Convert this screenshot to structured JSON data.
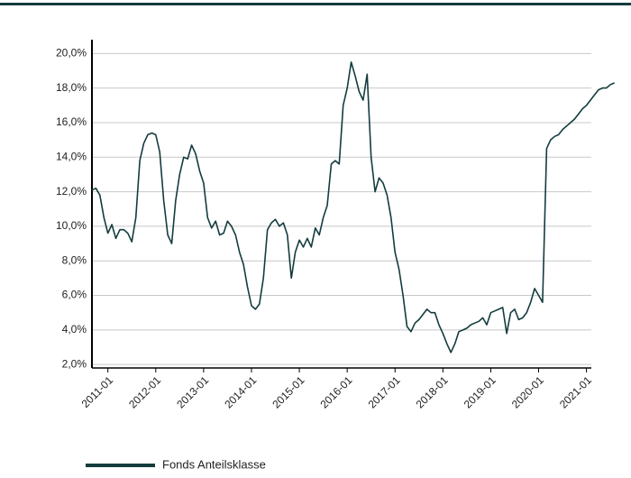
{
  "chart_data": {
    "type": "line",
    "x": [
      "2010-09",
      "2010-10",
      "2010-11",
      "2010-12",
      "2011-01",
      "2011-02",
      "2011-03",
      "2011-04",
      "2011-05",
      "2011-06",
      "2011-07",
      "2011-08",
      "2011-09",
      "2011-10",
      "2011-11",
      "2011-12",
      "2012-01",
      "2012-02",
      "2012-03",
      "2012-04",
      "2012-05",
      "2012-06",
      "2012-07",
      "2012-08",
      "2012-09",
      "2012-10",
      "2012-11",
      "2012-12",
      "2013-01",
      "2013-02",
      "2013-03",
      "2013-04",
      "2013-05",
      "2013-06",
      "2013-07",
      "2013-08",
      "2013-09",
      "2013-10",
      "2013-11",
      "2013-12",
      "2014-01",
      "2014-02",
      "2014-03",
      "2014-04",
      "2014-05",
      "2014-06",
      "2014-07",
      "2014-08",
      "2014-09",
      "2014-10",
      "2014-11",
      "2014-12",
      "2015-01",
      "2015-02",
      "2015-03",
      "2015-04",
      "2015-05",
      "2015-06",
      "2015-07",
      "2015-08",
      "2015-09",
      "2015-10",
      "2015-11",
      "2015-12",
      "2016-01",
      "2016-02",
      "2016-03",
      "2016-04",
      "2016-05",
      "2016-06",
      "2016-07",
      "2016-08",
      "2016-09",
      "2016-10",
      "2016-11",
      "2016-12",
      "2017-01",
      "2017-02",
      "2017-03",
      "2017-04",
      "2017-05",
      "2017-06",
      "2017-07",
      "2017-08",
      "2017-09",
      "2017-10",
      "2017-11",
      "2017-12",
      "2018-01",
      "2018-02",
      "2018-03",
      "2018-04",
      "2018-05",
      "2018-06",
      "2018-07",
      "2018-08",
      "2018-09",
      "2018-10",
      "2018-11",
      "2018-12",
      "2019-01",
      "2019-02",
      "2019-03",
      "2019-04",
      "2019-05",
      "2019-06",
      "2019-07",
      "2019-08",
      "2019-09",
      "2019-10",
      "2019-11",
      "2019-12",
      "2020-01",
      "2020-02",
      "2020-03",
      "2020-04",
      "2020-05",
      "2020-06",
      "2020-07",
      "2020-08",
      "2020-09",
      "2020-10",
      "2020-11",
      "2020-12",
      "2021-01",
      "2021-02",
      "2021-03",
      "2021-04",
      "2021-05",
      "2021-06",
      "2021-07",
      "2021-08"
    ],
    "series": [
      {
        "name": "Fonds Anteilsklasse",
        "color": "#143c3e",
        "values": [
          12.1,
          12.2,
          11.8,
          10.5,
          9.6,
          10.1,
          9.3,
          9.8,
          9.8,
          9.6,
          9.1,
          10.5,
          13.8,
          14.8,
          15.3,
          15.4,
          15.3,
          14.3,
          11.5,
          9.5,
          9.0,
          11.5,
          13.0,
          14.0,
          13.9,
          14.7,
          14.2,
          13.2,
          12.5,
          10.5,
          9.9,
          10.3,
          9.5,
          9.6,
          10.3,
          10.0,
          9.5,
          8.5,
          7.8,
          6.5,
          5.4,
          5.2,
          5.5,
          7.0,
          9.8,
          10.2,
          10.4,
          10.0,
          10.2,
          9.5,
          7.0,
          8.5,
          9.2,
          8.8,
          9.3,
          8.8,
          9.9,
          9.5,
          10.5,
          11.2,
          13.6,
          13.8,
          13.6,
          17.0,
          18.0,
          19.5,
          18.7,
          17.8,
          17.3,
          18.8,
          14.0,
          12.0,
          12.8,
          12.5,
          11.8,
          10.5,
          8.5,
          7.5,
          6.0,
          4.2,
          3.9,
          4.4,
          4.6,
          4.9,
          5.2,
          5.0,
          5.0,
          4.3,
          3.8,
          3.2,
          2.7,
          3.2,
          3.9,
          4.0,
          4.1,
          4.3,
          4.4,
          4.5,
          4.7,
          4.3,
          5.0,
          5.1,
          5.2,
          5.3,
          3.8,
          5.0,
          5.2,
          4.6,
          4.7,
          5.0,
          5.6,
          6.4,
          6.0,
          5.6,
          14.5,
          15.0,
          15.2,
          15.3,
          15.6,
          15.8,
          16.0,
          16.2,
          16.5,
          16.8,
          17.0,
          17.3,
          17.6,
          17.9,
          18.0,
          18.0,
          18.2,
          18.3
        ]
      }
    ],
    "xlim": [
      "2010-09",
      "2021-09"
    ],
    "xticks": [
      "2011-01",
      "2012-01",
      "2013-01",
      "2014-01",
      "2015-01",
      "2016-01",
      "2017-01",
      "2018-01",
      "2019-01",
      "2020-01",
      "2021-01"
    ],
    "ylim": [
      1.8,
      20.8
    ],
    "yticks": [
      {
        "value": 2,
        "label": "2,0%"
      },
      {
        "value": 4,
        "label": "4,0%"
      },
      {
        "value": 6,
        "label": "6,0%"
      },
      {
        "value": 8,
        "label": "8,0%"
      },
      {
        "value": 10,
        "label": "10,0%"
      },
      {
        "value": 12,
        "label": "12,0%"
      },
      {
        "value": 14,
        "label": "14,0%"
      },
      {
        "value": 16,
        "label": "16,0%"
      },
      {
        "value": 18,
        "label": "18,0%"
      },
      {
        "value": 20,
        "label": "20,0%"
      }
    ],
    "grid": true
  }
}
